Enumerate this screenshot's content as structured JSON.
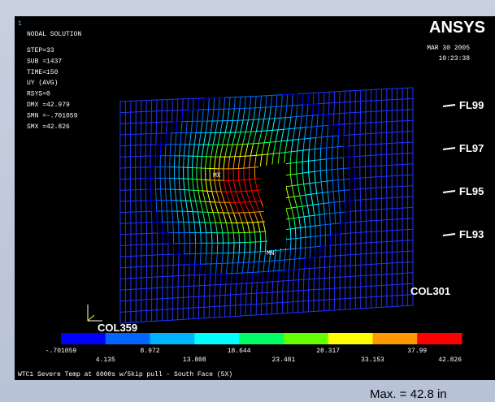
{
  "header": {
    "window": "1",
    "title": "NODAL SOLUTION",
    "brand": "ANSYS",
    "date": "MAR 30 2005",
    "time": "10:23:38"
  },
  "info": [
    "STEP=33",
    "SUB =1437",
    "TIME=150",
    "UY        (AVG)",
    "RSYS=0",
    "DMX =42.979",
    "SMN =-.701059",
    "SMX =42.826"
  ],
  "floors": [
    "FL99",
    "FL97",
    "FL95",
    "FL93"
  ],
  "markers": {
    "max": "MX",
    "min": "MN"
  },
  "columns": {
    "right": "COL301",
    "left": "COL359"
  },
  "legend": {
    "colors": [
      "#0000ff",
      "#0066ff",
      "#00b3ff",
      "#00ffff",
      "#00ff66",
      "#66ff00",
      "#ffff00",
      "#ff9900",
      "#ff0000"
    ],
    "labels_top": [
      "-.701059",
      "8.972",
      "18.644",
      "28.317",
      "37.99"
    ],
    "labels_bottom": [
      "4.135",
      "13.808",
      "23.481",
      "33.153",
      "42.826"
    ]
  },
  "caption": "WTC1 Severe Temp at 6000s w/5kip pull - South Face (5X)",
  "note": "Max. = 42.8 in"
}
